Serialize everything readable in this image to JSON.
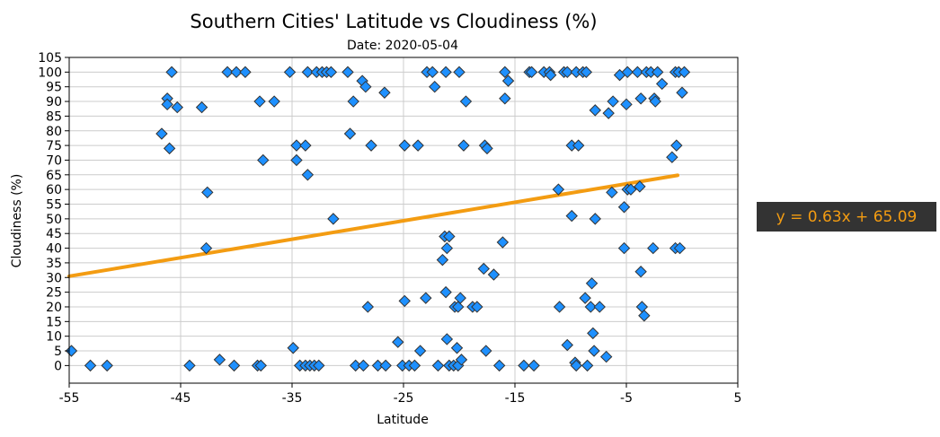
{
  "chart_data": {
    "type": "scatter",
    "title": "Southern Cities' Latitude vs Cloudiness (%)",
    "subtitle": "Date: 2020-05-04",
    "xlabel": "Latitude",
    "ylabel": "Cloudiness (%)",
    "xlim": [
      -55,
      5
    ],
    "ylim": [
      -6,
      105
    ],
    "x_ticks": [
      -55,
      -45,
      -35,
      -25,
      -15,
      -5,
      5
    ],
    "y_ticks": [
      0,
      5,
      10,
      15,
      20,
      25,
      30,
      35,
      40,
      45,
      50,
      55,
      60,
      65,
      70,
      75,
      80,
      85,
      90,
      95,
      100,
      105
    ],
    "grid": true,
    "marker": "diamond",
    "point_color": "#1e90ff",
    "point_edge_color": "#333333",
    "regression_color": "#f39c12",
    "annotation_bg": "#333333",
    "regression": {
      "slope": 0.63,
      "intercept": 65.09,
      "x_range": [
        -55,
        -0.4
      ],
      "label": "y = 0.63x + 65.09"
    },
    "points": [
      [
        -54.8,
        5
      ],
      [
        -53.1,
        0
      ],
      [
        -51.6,
        0
      ],
      [
        -46.7,
        79
      ],
      [
        -46.2,
        91
      ],
      [
        -46.2,
        89
      ],
      [
        -46.0,
        74
      ],
      [
        -45.8,
        100
      ],
      [
        -45.3,
        88
      ],
      [
        -44.2,
        0
      ],
      [
        -43.1,
        88
      ],
      [
        -42.6,
        59
      ],
      [
        -42.7,
        40
      ],
      [
        -41.5,
        2
      ],
      [
        -40.8,
        100
      ],
      [
        -40.2,
        0
      ],
      [
        -40.0,
        100
      ],
      [
        -39.2,
        100
      ],
      [
        -38.1,
        0
      ],
      [
        -37.9,
        90
      ],
      [
        -37.8,
        0
      ],
      [
        -37.6,
        70
      ],
      [
        -36.6,
        90
      ],
      [
        -35.2,
        100
      ],
      [
        -34.9,
        6
      ],
      [
        -34.6,
        75
      ],
      [
        -34.6,
        70
      ],
      [
        -34.3,
        0
      ],
      [
        -33.8,
        75
      ],
      [
        -33.8,
        0
      ],
      [
        -33.6,
        65
      ],
      [
        -33.6,
        100
      ],
      [
        -33.4,
        0
      ],
      [
        -33.0,
        0
      ],
      [
        -32.8,
        100
      ],
      [
        -32.6,
        0
      ],
      [
        -32.3,
        100
      ],
      [
        -31.9,
        100
      ],
      [
        -31.5,
        100
      ],
      [
        -31.3,
        50
      ],
      [
        -30.0,
        100
      ],
      [
        -29.8,
        79
      ],
      [
        -29.5,
        90
      ],
      [
        -29.3,
        0
      ],
      [
        -28.7,
        97
      ],
      [
        -28.6,
        0
      ],
      [
        -28.4,
        95
      ],
      [
        -28.2,
        20
      ],
      [
        -27.9,
        75
      ],
      [
        -27.3,
        0
      ],
      [
        -26.7,
        93
      ],
      [
        -26.6,
        0
      ],
      [
        -25.5,
        8
      ],
      [
        -25.1,
        0
      ],
      [
        -24.9,
        22
      ],
      [
        -24.9,
        75
      ],
      [
        -24.5,
        0
      ],
      [
        -24.0,
        0
      ],
      [
        -23.7,
        75
      ],
      [
        -23.5,
        5
      ],
      [
        -23.0,
        23
      ],
      [
        -22.9,
        100
      ],
      [
        -22.4,
        100
      ],
      [
        -22.2,
        95
      ],
      [
        -21.9,
        0
      ],
      [
        -21.5,
        36
      ],
      [
        -21.3,
        44
      ],
      [
        -21.2,
        25
      ],
      [
        -21.2,
        100
      ],
      [
        -21.1,
        9
      ],
      [
        -21.1,
        40
      ],
      [
        -20.9,
        44
      ],
      [
        -20.9,
        0
      ],
      [
        -20.5,
        0
      ],
      [
        -20.4,
        20
      ],
      [
        -20.2,
        6
      ],
      [
        -20.1,
        20
      ],
      [
        -20.1,
        0
      ],
      [
        -20.0,
        100
      ],
      [
        -19.9,
        23
      ],
      [
        -19.8,
        2
      ],
      [
        -19.6,
        75
      ],
      [
        -19.4,
        90
      ],
      [
        -18.8,
        20
      ],
      [
        -18.4,
        20
      ],
      [
        -17.8,
        33
      ],
      [
        -17.7,
        75
      ],
      [
        -17.6,
        5
      ],
      [
        -17.5,
        74
      ],
      [
        -16.9,
        31
      ],
      [
        -16.4,
        0
      ],
      [
        -16.1,
        42
      ],
      [
        -15.9,
        100
      ],
      [
        -15.9,
        91
      ],
      [
        -15.6,
        97
      ],
      [
        -14.2,
        0
      ],
      [
        -13.7,
        100
      ],
      [
        -13.5,
        100
      ],
      [
        -13.3,
        0
      ],
      [
        -12.4,
        100
      ],
      [
        -11.9,
        100
      ],
      [
        -11.8,
        99
      ],
      [
        -11.1,
        60
      ],
      [
        -11.0,
        20
      ],
      [
        -10.6,
        100
      ],
      [
        -10.3,
        100
      ],
      [
        -10.3,
        7
      ],
      [
        -9.9,
        51
      ],
      [
        -9.9,
        75
      ],
      [
        -9.6,
        1
      ],
      [
        -9.5,
        100
      ],
      [
        -9.5,
        0
      ],
      [
        -9.3,
        75
      ],
      [
        -8.9,
        100
      ],
      [
        -8.7,
        23
      ],
      [
        -8.6,
        100
      ],
      [
        -8.5,
        0
      ],
      [
        -8.2,
        20
      ],
      [
        -8.1,
        28
      ],
      [
        -8.0,
        11
      ],
      [
        -7.9,
        5
      ],
      [
        -7.8,
        50
      ],
      [
        -7.8,
        87
      ],
      [
        -7.4,
        20
      ],
      [
        -6.8,
        3
      ],
      [
        -6.6,
        86
      ],
      [
        -6.3,
        59
      ],
      [
        -6.2,
        90
      ],
      [
        -5.6,
        99
      ],
      [
        -5.2,
        54
      ],
      [
        -5.2,
        40
      ],
      [
        -5.0,
        89
      ],
      [
        -4.9,
        60
      ],
      [
        -4.9,
        100
      ],
      [
        -4.6,
        60
      ],
      [
        -4.0,
        100
      ],
      [
        -3.8,
        61
      ],
      [
        -3.7,
        91
      ],
      [
        -3.7,
        32
      ],
      [
        -3.6,
        20
      ],
      [
        -3.4,
        17
      ],
      [
        -3.2,
        100
      ],
      [
        -2.8,
        100
      ],
      [
        -2.6,
        40
      ],
      [
        -2.5,
        91
      ],
      [
        -2.4,
        90
      ],
      [
        -2.2,
        100
      ],
      [
        -1.8,
        96
      ],
      [
        -0.9,
        71
      ],
      [
        -0.6,
        40
      ],
      [
        -0.6,
        100
      ],
      [
        -0.5,
        75
      ],
      [
        -0.3,
        100
      ],
      [
        -0.2,
        40
      ],
      [
        0.0,
        93
      ],
      [
        0.2,
        100
      ]
    ]
  }
}
